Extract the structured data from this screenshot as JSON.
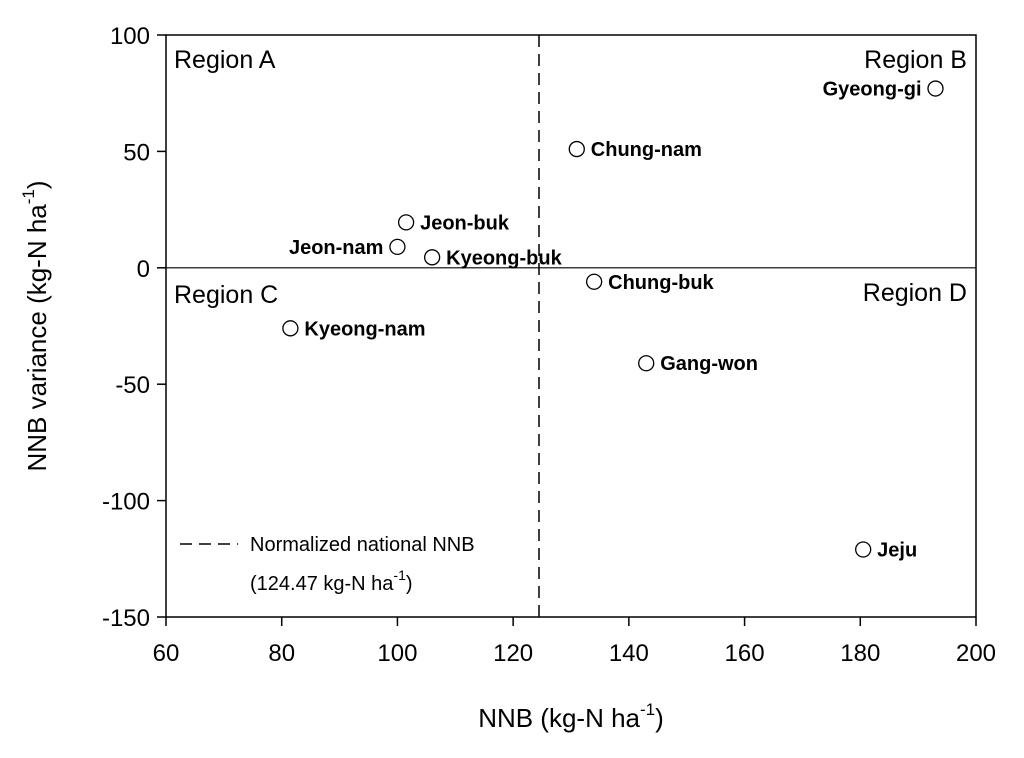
{
  "chart_data": {
    "type": "scatter",
    "xlabel": "NNB (kg-N ha",
    "xlabel_sup": "-1",
    "xlabel_end": ")",
    "ylabel": "NNB variance (kg-N ha",
    "ylabel_sup": "-1",
    "ylabel_end": ")",
    "xlim": [
      60,
      200
    ],
    "ylim": [
      -150,
      100
    ],
    "xticks": [
      60,
      80,
      100,
      120,
      140,
      160,
      180,
      200
    ],
    "yticks": [
      -150,
      -100,
      -50,
      0,
      50,
      100
    ],
    "hline": 0,
    "vline": 124.47,
    "points": [
      {
        "name": "Gyeong-gi",
        "x": 193,
        "y": 77,
        "label_side": "left"
      },
      {
        "name": "Chung-nam",
        "x": 131,
        "y": 51,
        "label_side": "right"
      },
      {
        "name": "Jeon-buk",
        "x": 101.5,
        "y": 19.5,
        "label_side": "right"
      },
      {
        "name": "Jeon-nam",
        "x": 100,
        "y": 9,
        "label_side": "left"
      },
      {
        "name": "Kyeong-buk",
        "x": 106,
        "y": 4.5,
        "label_side": "right"
      },
      {
        "name": "Chung-buk",
        "x": 134,
        "y": -6,
        "label_side": "right"
      },
      {
        "name": "Kyeong-nam",
        "x": 81.5,
        "y": -26,
        "label_side": "right"
      },
      {
        "name": "Gang-won",
        "x": 143,
        "y": -41,
        "label_side": "right"
      },
      {
        "name": "Jeju",
        "x": 180.5,
        "y": -121,
        "label_side": "right"
      }
    ],
    "regions": [
      {
        "label": "Region A",
        "position": "top-left"
      },
      {
        "label": "Region B",
        "position": "top-right"
      },
      {
        "label": "Region C",
        "position": "middle-left"
      },
      {
        "label": "Region D",
        "position": "middle-right"
      }
    ],
    "legend": {
      "position": "bottom-left",
      "line1": "Normalized national NNB",
      "line2_start": "(124.47 kg-N ha",
      "line2_sup": "-1",
      "line2_end": ")"
    },
    "grid": false
  }
}
